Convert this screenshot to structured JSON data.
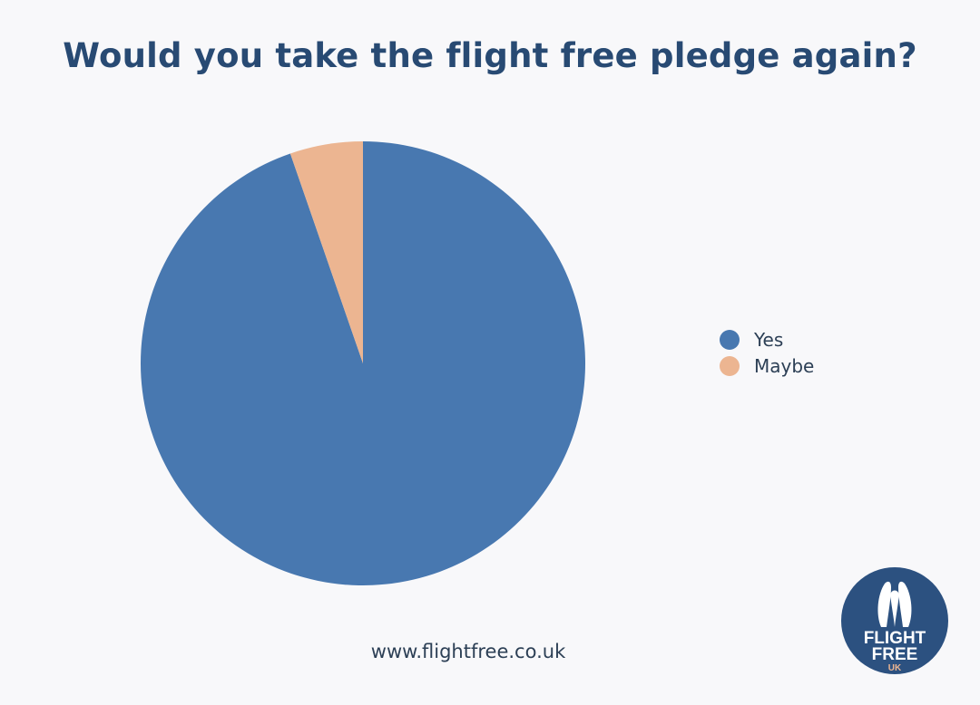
{
  "chart_data": {
    "type": "pie",
    "title": "Would you take the flight free pledge again?",
    "categories": [
      "Yes",
      "Maybe"
    ],
    "values": [
      94.7,
      5.3
    ],
    "colors": [
      "#4878b0",
      "#ecb591"
    ],
    "start_angle_deg": 0,
    "direction": "clockwise",
    "legend": {
      "placement": "right",
      "entries": [
        "Yes",
        "Maybe"
      ]
    }
  },
  "footer": {
    "url": "www.flightfree.co.uk"
  },
  "logo": {
    "line1": "FLIGHT",
    "line2": "FREE",
    "line3": "UK",
    "color": "#2c5180",
    "accent": "#ecb591"
  }
}
